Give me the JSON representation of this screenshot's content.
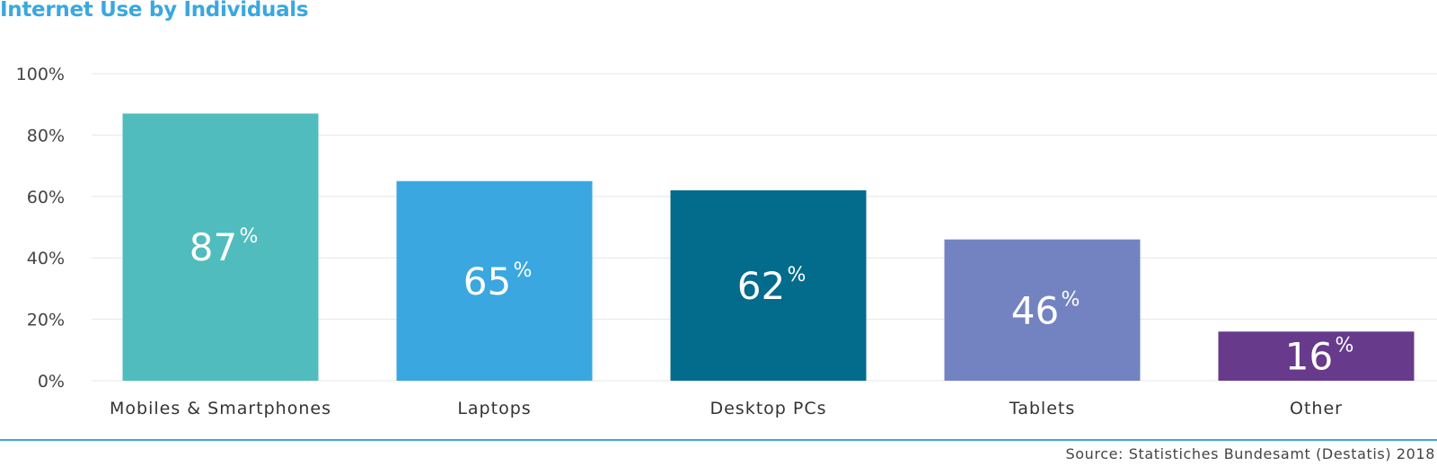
{
  "chart_data": {
    "type": "bar",
    "title": "Internet Use by Individuals",
    "categories": [
      "Mobiles & Smartphones",
      "Laptops",
      "Desktop PCs",
      "Tablets",
      "Other"
    ],
    "values": [
      87,
      65,
      62,
      46,
      16
    ],
    "value_labels": [
      "87",
      "65",
      "62",
      "46",
      "16"
    ],
    "value_suffix": "%",
    "colors": [
      "#50bcbd",
      "#3aa7e0",
      "#036b8c",
      "#7383c1",
      "#673a8c"
    ],
    "ylim": [
      0,
      100
    ],
    "yticks": [
      {
        "value": 0,
        "label": "0%"
      },
      {
        "value": 20,
        "label": "20%"
      },
      {
        "value": 40,
        "label": "40%"
      },
      {
        "value": 60,
        "label": "60%"
      },
      {
        "value": 80,
        "label": "80%"
      },
      {
        "value": 100,
        "label": "100%"
      }
    ],
    "grid": true,
    "xlabel": "",
    "ylabel": ""
  },
  "footer": {
    "source": "Source: Statistiches Bundesamt (Destatis) 2018"
  },
  "colors": {
    "accent": "#3aa7e0",
    "grid": "#e6e6e6"
  }
}
